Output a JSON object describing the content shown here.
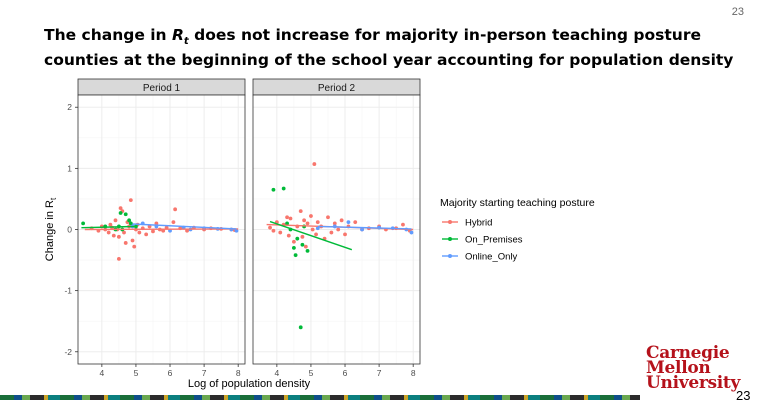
{
  "slide": {
    "number_top": "23",
    "number_bottom": "23"
  },
  "title": {
    "part1": "The change in ",
    "r_symbol": "R",
    "r_sub": "t",
    "part2": " does not increase for majority in-person teaching posture counties at the beginning of the school year accounting for population density"
  },
  "logo": {
    "line1": "Carnegie",
    "line2": "Mellon",
    "line3": "University"
  },
  "colors": {
    "Hybrid": "#F8766D",
    "On_Premises": "#00BA38",
    "Online_Only": "#619CFF",
    "strip_bg": "#d9d9d9",
    "panel_border": "#333333",
    "grid_major": "#ebebeb",
    "grid_minor": "#f5f5f5"
  },
  "chart_data": {
    "type": "scatter",
    "facets": [
      "Period 1",
      "Period 2"
    ],
    "xlabel": "Log of population density",
    "ylabel_main": "Change in R",
    "ylabel_sub": "t",
    "xlim": [
      3.3,
      8.2
    ],
    "ylim": [
      -2.2,
      2.2
    ],
    "xticks": [
      4,
      5,
      6,
      7,
      8
    ],
    "yticks": [
      -2,
      -1,
      0,
      1,
      2
    ],
    "grid": true,
    "legend": {
      "title": "Majority starting teaching posture",
      "placement": "right",
      "entries": [
        "Hybrid",
        "On_Premises",
        "Online_Only"
      ]
    },
    "panels": [
      {
        "name": "Period 1",
        "points": {
          "Hybrid": [
            [
              3.7,
              0.02
            ],
            [
              3.9,
              -0.02
            ],
            [
              4.0,
              0.05
            ],
            [
              4.1,
              0.0
            ],
            [
              4.2,
              -0.05
            ],
            [
              4.25,
              0.08
            ],
            [
              4.3,
              0.03
            ],
            [
              4.35,
              -0.1
            ],
            [
              4.4,
              0.15
            ],
            [
              4.45,
              0.0
            ],
            [
              4.5,
              -0.12
            ],
            [
              4.55,
              0.35
            ],
            [
              4.5,
              -0.48
            ],
            [
              4.6,
              0.3
            ],
            [
              4.65,
              -0.05
            ],
            [
              4.7,
              -0.22
            ],
            [
              4.75,
              0.12
            ],
            [
              4.8,
              0.05
            ],
            [
              4.85,
              0.48
            ],
            [
              4.9,
              -0.18
            ],
            [
              4.95,
              -0.28
            ],
            [
              5.0,
              0.0
            ],
            [
              5.05,
              0.08
            ],
            [
              5.1,
              -0.05
            ],
            [
              5.2,
              0.02
            ],
            [
              5.3,
              -0.08
            ],
            [
              5.4,
              0.05
            ],
            [
              5.5,
              -0.03
            ],
            [
              5.6,
              0.1
            ],
            [
              5.7,
              0.0
            ],
            [
              5.8,
              -0.02
            ],
            [
              5.9,
              0.03
            ],
            [
              6.1,
              0.12
            ],
            [
              6.15,
              0.33
            ],
            [
              6.3,
              0.02
            ],
            [
              6.5,
              -0.02
            ],
            [
              6.7,
              0.03
            ],
            [
              7.0,
              0.0
            ],
            [
              7.2,
              0.02
            ],
            [
              7.5,
              0.01
            ],
            [
              7.8,
              0.0
            ],
            [
              7.9,
              -0.01
            ]
          ],
          "On_Premises": [
            [
              3.45,
              0.1
            ],
            [
              4.1,
              0.05
            ],
            [
              4.4,
              0.0
            ],
            [
              4.5,
              0.05
            ],
            [
              4.55,
              0.27
            ],
            [
              4.6,
              0.0
            ],
            [
              4.7,
              0.25
            ],
            [
              4.8,
              0.15
            ],
            [
              4.85,
              0.1
            ],
            [
              5.0,
              0.05
            ]
          ],
          "Online_Only": [
            [
              4.9,
              0.05
            ],
            [
              5.2,
              0.1
            ],
            [
              5.6,
              0.05
            ],
            [
              6.0,
              -0.02
            ],
            [
              6.4,
              0.03
            ],
            [
              6.6,
              0.0
            ],
            [
              7.0,
              0.02
            ],
            [
              7.4,
              0.01
            ],
            [
              7.8,
              0.0
            ],
            [
              7.95,
              -0.02
            ]
          ]
        },
        "trends": {
          "Hybrid": [
            [
              3.5,
              0.0
            ],
            [
              8.0,
              0.01
            ]
          ],
          "On_Premises": [
            [
              3.4,
              0.03
            ],
            [
              5.0,
              0.05
            ]
          ],
          "Online_Only": [
            [
              4.9,
              0.09
            ],
            [
              7.95,
              0.01
            ]
          ]
        }
      },
      {
        "name": "Period 2",
        "points": {
          "Hybrid": [
            [
              3.8,
              0.03
            ],
            [
              3.9,
              -0.02
            ],
            [
              4.0,
              0.12
            ],
            [
              4.1,
              -0.05
            ],
            [
              4.2,
              0.08
            ],
            [
              4.3,
              0.2
            ],
            [
              4.35,
              -0.1
            ],
            [
              4.4,
              0.18
            ],
            [
              4.5,
              -0.2
            ],
            [
              4.6,
              0.05
            ],
            [
              4.7,
              0.3
            ],
            [
              4.75,
              -0.12
            ],
            [
              4.8,
              0.15
            ],
            [
              4.85,
              -0.28
            ],
            [
              4.9,
              0.1
            ],
            [
              5.0,
              0.22
            ],
            [
              5.05,
              0.0
            ],
            [
              5.1,
              1.07
            ],
            [
              5.15,
              -0.08
            ],
            [
              5.2,
              0.12
            ],
            [
              5.3,
              0.05
            ],
            [
              5.4,
              -0.15
            ],
            [
              5.5,
              0.2
            ],
            [
              5.6,
              -0.05
            ],
            [
              5.7,
              0.1
            ],
            [
              5.8,
              0.0
            ],
            [
              5.9,
              0.15
            ],
            [
              6.0,
              -0.08
            ],
            [
              6.1,
              0.05
            ],
            [
              6.3,
              0.12
            ],
            [
              6.5,
              0.0
            ],
            [
              6.7,
              0.02
            ],
            [
              7.0,
              0.05
            ],
            [
              7.2,
              0.0
            ],
            [
              7.5,
              0.02
            ],
            [
              7.7,
              0.08
            ],
            [
              7.9,
              -0.02
            ]
          ],
          "On_Premises": [
            [
              3.9,
              0.65
            ],
            [
              4.2,
              0.67
            ],
            [
              4.3,
              0.1
            ],
            [
              4.4,
              0.0
            ],
            [
              4.5,
              -0.3
            ],
            [
              4.55,
              -0.42
            ],
            [
              4.6,
              -0.15
            ],
            [
              4.7,
              -1.6
            ],
            [
              4.75,
              -0.25
            ],
            [
              4.8,
              0.05
            ],
            [
              4.9,
              -0.35
            ]
          ],
          "Online_Only": [
            [
              5.2,
              0.02
            ],
            [
              5.7,
              0.05
            ],
            [
              6.1,
              0.12
            ],
            [
              6.5,
              0.0
            ],
            [
              7.0,
              0.03
            ],
            [
              7.4,
              0.02
            ],
            [
              7.8,
              0.0
            ],
            [
              7.95,
              -0.05
            ]
          ]
        },
        "trends": {
          "Hybrid": [
            [
              3.7,
              0.08
            ],
            [
              8.0,
              0.0
            ]
          ],
          "On_Premises": [
            [
              3.8,
              0.13
            ],
            [
              6.2,
              -0.33
            ]
          ],
          "Online_Only": [
            [
              5.2,
              0.05
            ],
            [
              7.95,
              0.01
            ]
          ]
        }
      }
    ]
  }
}
